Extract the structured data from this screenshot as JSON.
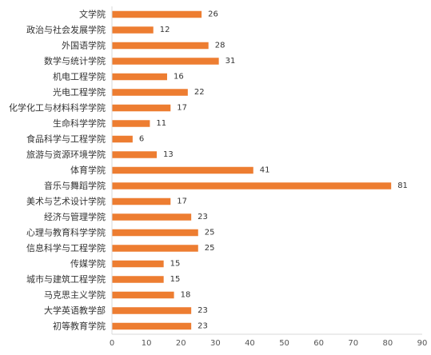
{
  "chart_data": {
    "type": "bar",
    "orientation": "horizontal",
    "categories": [
      "文学院",
      "政治与社会发展学院",
      "外国语学院",
      "数学与统计学院",
      "机电工程学院",
      "光电工程学院",
      "化学化工与材料科学学院",
      "生命科学学院",
      "食品科学与工程学院",
      "旅游与资源环境学院",
      "体育学院",
      "音乐与舞蹈学院",
      "美术与艺术设计学院",
      "经济与管理学院",
      "心理与教育科学学院",
      "信息科学与工程学院",
      "传媒学院",
      "城市与建筑工程学院",
      "马克思主义学院",
      "大学英语教学部",
      "初等教育学院"
    ],
    "values": [
      26,
      12,
      28,
      31,
      16,
      22,
      17,
      11,
      6,
      13,
      41,
      81,
      17,
      23,
      25,
      25,
      15,
      15,
      18,
      23,
      23
    ],
    "xlim": [
      0,
      90
    ],
    "xticks": [
      0,
      10,
      20,
      30,
      40,
      50,
      60,
      70,
      80,
      90
    ],
    "title": "",
    "xlabel": "",
    "ylabel": "",
    "grid": false,
    "legend": "none",
    "bar_color": "#ED7D31",
    "axis_color": "#D9D9D9"
  }
}
